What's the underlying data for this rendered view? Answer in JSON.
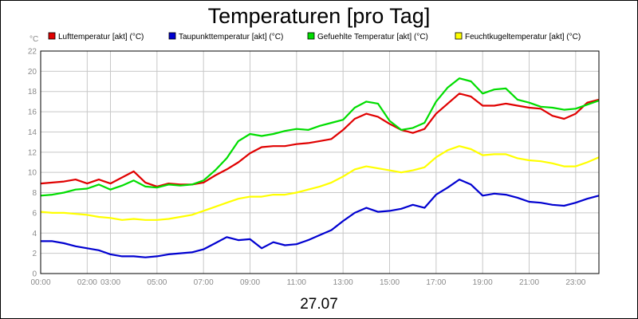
{
  "chart_data": {
    "type": "line",
    "title": "Temperaturen [pro Tag]",
    "ylabel": "°C",
    "xlabel": "27.07",
    "ylim": [
      0,
      22
    ],
    "yticks": [
      0,
      2,
      4,
      6,
      8,
      10,
      12,
      14,
      16,
      18,
      20,
      22
    ],
    "xlim": [
      0,
      24
    ],
    "xticks": [
      {
        "label": "00:00",
        "value": 0
      },
      {
        "label": "02:00",
        "value": 2
      },
      {
        "label": "03:00",
        "value": 3
      },
      {
        "label": "05:00",
        "value": 5
      },
      {
        "label": "07:00",
        "value": 7
      },
      {
        "label": "09:00",
        "value": 9
      },
      {
        "label": "11:00",
        "value": 11
      },
      {
        "label": "13:00",
        "value": 13
      },
      {
        "label": "15:00",
        "value": 15
      },
      {
        "label": "17:00",
        "value": 17
      },
      {
        "label": "19:00",
        "value": 19
      },
      {
        "label": "21:00",
        "value": 21
      },
      {
        "label": "23:00",
        "value": 23
      }
    ],
    "grid": true,
    "legend_position": "top",
    "x": [
      0,
      0.5,
      1,
      1.5,
      2,
      2.5,
      3,
      3.5,
      4,
      4.5,
      5,
      5.5,
      6,
      6.5,
      7,
      7.5,
      8,
      8.5,
      9,
      9.5,
      10,
      10.5,
      11,
      11.5,
      12,
      12.5,
      13,
      13.5,
      14,
      14.5,
      15,
      15.5,
      16,
      16.5,
      17,
      17.5,
      18,
      18.5,
      19,
      19.5,
      20,
      20.5,
      21,
      21.5,
      22,
      22.5,
      23,
      23.5,
      24
    ],
    "series": [
      {
        "name": "Lufttemperatur [akt] (°C)",
        "color": "#e00000",
        "values": [
          8.9,
          9.0,
          9.1,
          9.3,
          8.9,
          9.3,
          8.9,
          9.5,
          10.1,
          9.0,
          8.6,
          8.9,
          8.8,
          8.8,
          9.0,
          9.7,
          10.3,
          11.0,
          11.9,
          12.5,
          12.6,
          12.6,
          12.8,
          12.9,
          13.1,
          13.3,
          14.2,
          15.3,
          15.8,
          15.5,
          14.8,
          14.2,
          13.9,
          14.3,
          15.8,
          16.8,
          17.8,
          17.5,
          16.6,
          16.6,
          16.8,
          16.6,
          16.4,
          16.3,
          15.6,
          15.3,
          15.8,
          16.9,
          17.2
        ]
      },
      {
        "name": "Taupunkttemperatur [akt] (°C)",
        "color": "#0000d0",
        "values": [
          3.2,
          3.2,
          3.0,
          2.7,
          2.5,
          2.3,
          1.9,
          1.7,
          1.7,
          1.6,
          1.7,
          1.9,
          2.0,
          2.1,
          2.4,
          3.0,
          3.6,
          3.3,
          3.4,
          2.5,
          3.1,
          2.8,
          2.9,
          3.3,
          3.8,
          4.3,
          5.2,
          6.0,
          6.5,
          6.1,
          6.2,
          6.4,
          6.8,
          6.5,
          7.8,
          8.5,
          9.3,
          8.8,
          7.7,
          7.9,
          7.8,
          7.5,
          7.1,
          7.0,
          6.8,
          6.7,
          7.0,
          7.4,
          7.7
        ]
      },
      {
        "name": "Gefuehlte Temperatur [akt] (°C)",
        "color": "#00dd00",
        "values": [
          7.7,
          7.8,
          8.0,
          8.3,
          8.4,
          8.8,
          8.3,
          8.7,
          9.2,
          8.6,
          8.5,
          8.8,
          8.7,
          8.8,
          9.2,
          10.2,
          11.4,
          13.1,
          13.8,
          13.6,
          13.8,
          14.1,
          14.3,
          14.2,
          14.6,
          14.9,
          15.2,
          16.4,
          17.0,
          16.8,
          15.1,
          14.2,
          14.4,
          14.9,
          17.0,
          18.4,
          19.3,
          19.0,
          17.8,
          18.2,
          18.3,
          17.2,
          16.9,
          16.5,
          16.4,
          16.2,
          16.3,
          16.7,
          17.1
        ]
      },
      {
        "name": "Feuchtkugeltemperatur [akt] (°C)",
        "color": "#ffff00",
        "values": [
          6.1,
          6.0,
          6.0,
          5.9,
          5.8,
          5.6,
          5.5,
          5.3,
          5.4,
          5.3,
          5.3,
          5.4,
          5.6,
          5.8,
          6.2,
          6.6,
          7.0,
          7.4,
          7.6,
          7.6,
          7.8,
          7.8,
          8.0,
          8.3,
          8.6,
          9.0,
          9.6,
          10.3,
          10.6,
          10.4,
          10.2,
          10.0,
          10.2,
          10.5,
          11.5,
          12.2,
          12.6,
          12.3,
          11.7,
          11.8,
          11.8,
          11.4,
          11.2,
          11.1,
          10.9,
          10.6,
          10.6,
          11.0,
          11.5
        ]
      }
    ]
  }
}
